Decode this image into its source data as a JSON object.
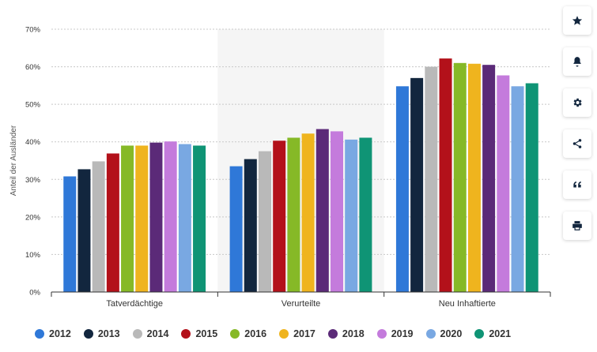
{
  "chart_data": {
    "type": "bar",
    "categories": [
      "Tatverdächtige",
      "Verurteilte",
      "Neu Inhaftierte"
    ],
    "ylabel": "Anteil der Ausländer",
    "ylim": [
      0,
      70
    ],
    "yticks": [
      "0%",
      "10%",
      "20%",
      "30%",
      "40%",
      "50%",
      "60%",
      "70%"
    ],
    "grid": true,
    "legend_position": "bottom",
    "series": [
      {
        "name": "2012",
        "color": "#2f78d8",
        "values": [
          30.8,
          33.5,
          54.8
        ]
      },
      {
        "name": "2013",
        "color": "#12263e",
        "values": [
          32.7,
          35.4,
          57.0
        ]
      },
      {
        "name": "2014",
        "color": "#b9b9b9",
        "values": [
          34.8,
          37.5,
          60.0
        ]
      },
      {
        "name": "2015",
        "color": "#b3111a",
        "values": [
          36.9,
          40.3,
          62.2
        ]
      },
      {
        "name": "2016",
        "color": "#86b927",
        "values": [
          39.0,
          41.1,
          61.0
        ]
      },
      {
        "name": "2017",
        "color": "#efb41e",
        "values": [
          39.0,
          42.2,
          60.8
        ]
      },
      {
        "name": "2018",
        "color": "#5b2a78",
        "values": [
          39.8,
          43.4,
          60.5
        ]
      },
      {
        "name": "2019",
        "color": "#c47bdc",
        "values": [
          40.1,
          42.8,
          57.7
        ]
      },
      {
        "name": "2020",
        "color": "#79a8e2",
        "values": [
          39.4,
          40.6,
          54.8
        ]
      },
      {
        "name": "2021",
        "color": "#0f9475",
        "values": [
          39.0,
          41.1,
          55.6
        ]
      }
    ]
  },
  "toolbar": [
    {
      "icon": "star-icon",
      "name": "favorite-button"
    },
    {
      "icon": "bell-icon",
      "name": "notification-button"
    },
    {
      "icon": "gear-icon",
      "name": "settings-button"
    },
    {
      "icon": "share-icon",
      "name": "share-button"
    },
    {
      "icon": "quote-icon",
      "name": "cite-button"
    },
    {
      "icon": "print-icon",
      "name": "print-button"
    }
  ]
}
